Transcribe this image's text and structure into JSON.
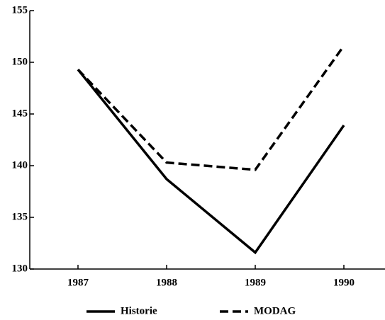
{
  "chart_data": {
    "type": "line",
    "categories": [
      "1987",
      "1988",
      "1989",
      "1990"
    ],
    "series": [
      {
        "name": "Historie",
        "color": "#000000",
        "dash": "solid",
        "values": [
          149.3,
          138.7,
          131.6,
          143.9
        ]
      },
      {
        "name": "MODAG",
        "color": "#000000",
        "dash": "dashed",
        "values": [
          149.3,
          140.3,
          139.6,
          151.6
        ]
      }
    ],
    "ylim": [
      130,
      155
    ],
    "yticks": [
      130,
      135,
      140,
      145,
      150,
      155
    ],
    "grid": false,
    "legend": "bottom"
  }
}
